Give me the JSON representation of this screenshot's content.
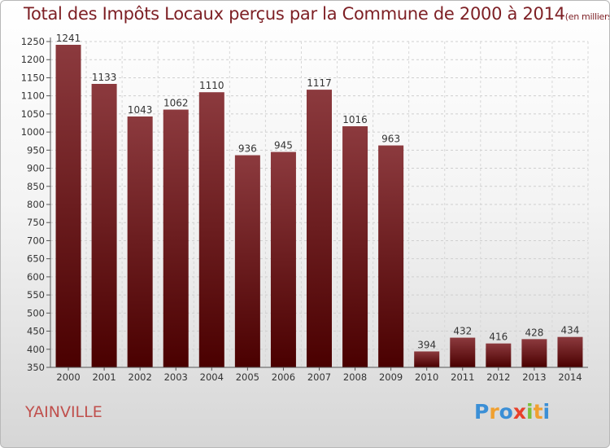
{
  "header": {
    "title": "Total des Impôts Locaux perçus par la Commune de 2000 à 2014",
    "subtitle": "(en milliers d'€)"
  },
  "footer": {
    "commune": "YAINVILLE",
    "logo_letters": [
      "P",
      "r",
      "o",
      "x",
      "i",
      "t",
      "i"
    ]
  },
  "colors": {
    "bar_top": "#8c3a3e",
    "bar_bottom": "#4a0000",
    "title": "#7d1f24",
    "commune": "#c0504d"
  },
  "chart_data": {
    "type": "bar",
    "title": "Total des Impôts Locaux perçus par la Commune de 2000 à 2014",
    "subtitle": "(en milliers d'€)",
    "xlabel": "",
    "ylabel": "",
    "categories": [
      "2000",
      "2001",
      "2002",
      "2003",
      "2004",
      "2005",
      "2006",
      "2007",
      "2008",
      "2009",
      "2010",
      "2011",
      "2012",
      "2013",
      "2014"
    ],
    "values": [
      1241,
      1133,
      1043,
      1062,
      1110,
      936,
      945,
      1117,
      1016,
      963,
      394,
      432,
      416,
      428,
      434
    ],
    "ylim": [
      350,
      1250
    ],
    "yticks": [
      350,
      400,
      450,
      500,
      550,
      600,
      650,
      700,
      750,
      800,
      850,
      900,
      950,
      1000,
      1050,
      1100,
      1150,
      1200,
      1250
    ],
    "grid": true,
    "data_labels": true
  }
}
